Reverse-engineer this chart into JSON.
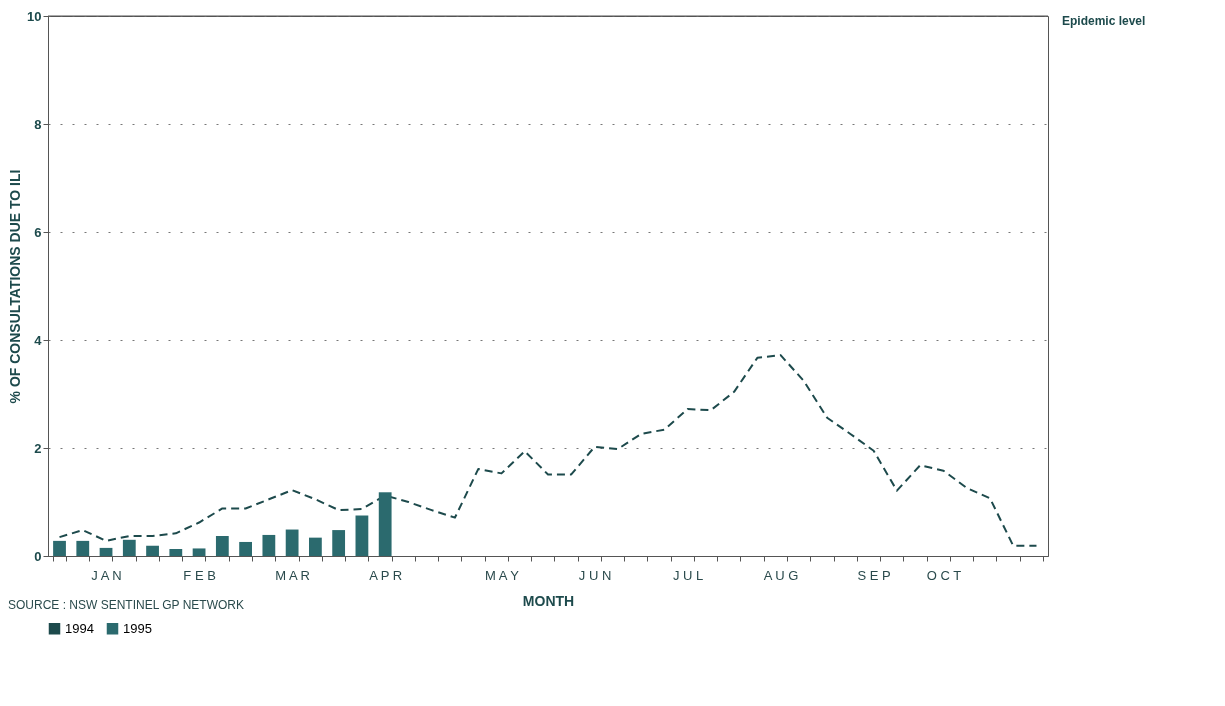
{
  "chart_data": {
    "type": "bar",
    "ylabel": "% OF CONSULTATIONS DUE TO ILI",
    "xlabel": "MONTH",
    "categories": [
      null,
      null,
      "J A N",
      null,
      null,
      null,
      "F E B",
      null,
      null,
      null,
      "M A R",
      null,
      null,
      null,
      "A P R",
      null,
      null,
      null,
      null,
      "M A Y",
      null,
      null,
      null,
      "J U N",
      null,
      null,
      null,
      "J U L",
      null,
      null,
      null,
      "A U G",
      null,
      null,
      null,
      "S E P",
      null,
      null,
      "O C T",
      null,
      null,
      null,
      null
    ],
    "ylim": [
      0,
      10
    ],
    "yticks": [
      0,
      2,
      4,
      6,
      8,
      10
    ],
    "grid": "y",
    "legend": "bottom left",
    "series": [
      {
        "name": "1994",
        "type": "line",
        "line_style": "dashed",
        "color": "#1d4a4c",
        "values": [
          0.35,
          0.48,
          0.28,
          0.37,
          0.37,
          0.42,
          0.62,
          0.88,
          0.88,
          1.05,
          1.22,
          1.05,
          0.85,
          0.87,
          1.12,
          1.0,
          0.85,
          0.71,
          1.61,
          1.53,
          1.94,
          1.51,
          1.51,
          2.02,
          1.98,
          2.26,
          2.34,
          2.72,
          2.7,
          3.04,
          3.67,
          3.72,
          3.24,
          2.56,
          2.26,
          1.95,
          1.21,
          1.68,
          1.58,
          1.26,
          1.07,
          0.19,
          0.19
        ]
      },
      {
        "name": "1995",
        "color": "#2b6a6e",
        "values": [
          0.28,
          0.28,
          0.15,
          0.3,
          0.19,
          0.13,
          0.14,
          0.37,
          0.26,
          0.39,
          0.49,
          0.34,
          0.48,
          0.75,
          1.18,
          null,
          null,
          null,
          null,
          null,
          null,
          null,
          null,
          null,
          null,
          null,
          null,
          null,
          null,
          null,
          null,
          null,
          null,
          null,
          null,
          null,
          null,
          null,
          null,
          null,
          null,
          null,
          null
        ]
      }
    ],
    "ref_lines": [
      {
        "axis": "y",
        "value": 10,
        "label": "Epidemic level"
      }
    ],
    "annotations": [
      "SOURCE : NSW SENTINEL GP NETWORK"
    ]
  }
}
